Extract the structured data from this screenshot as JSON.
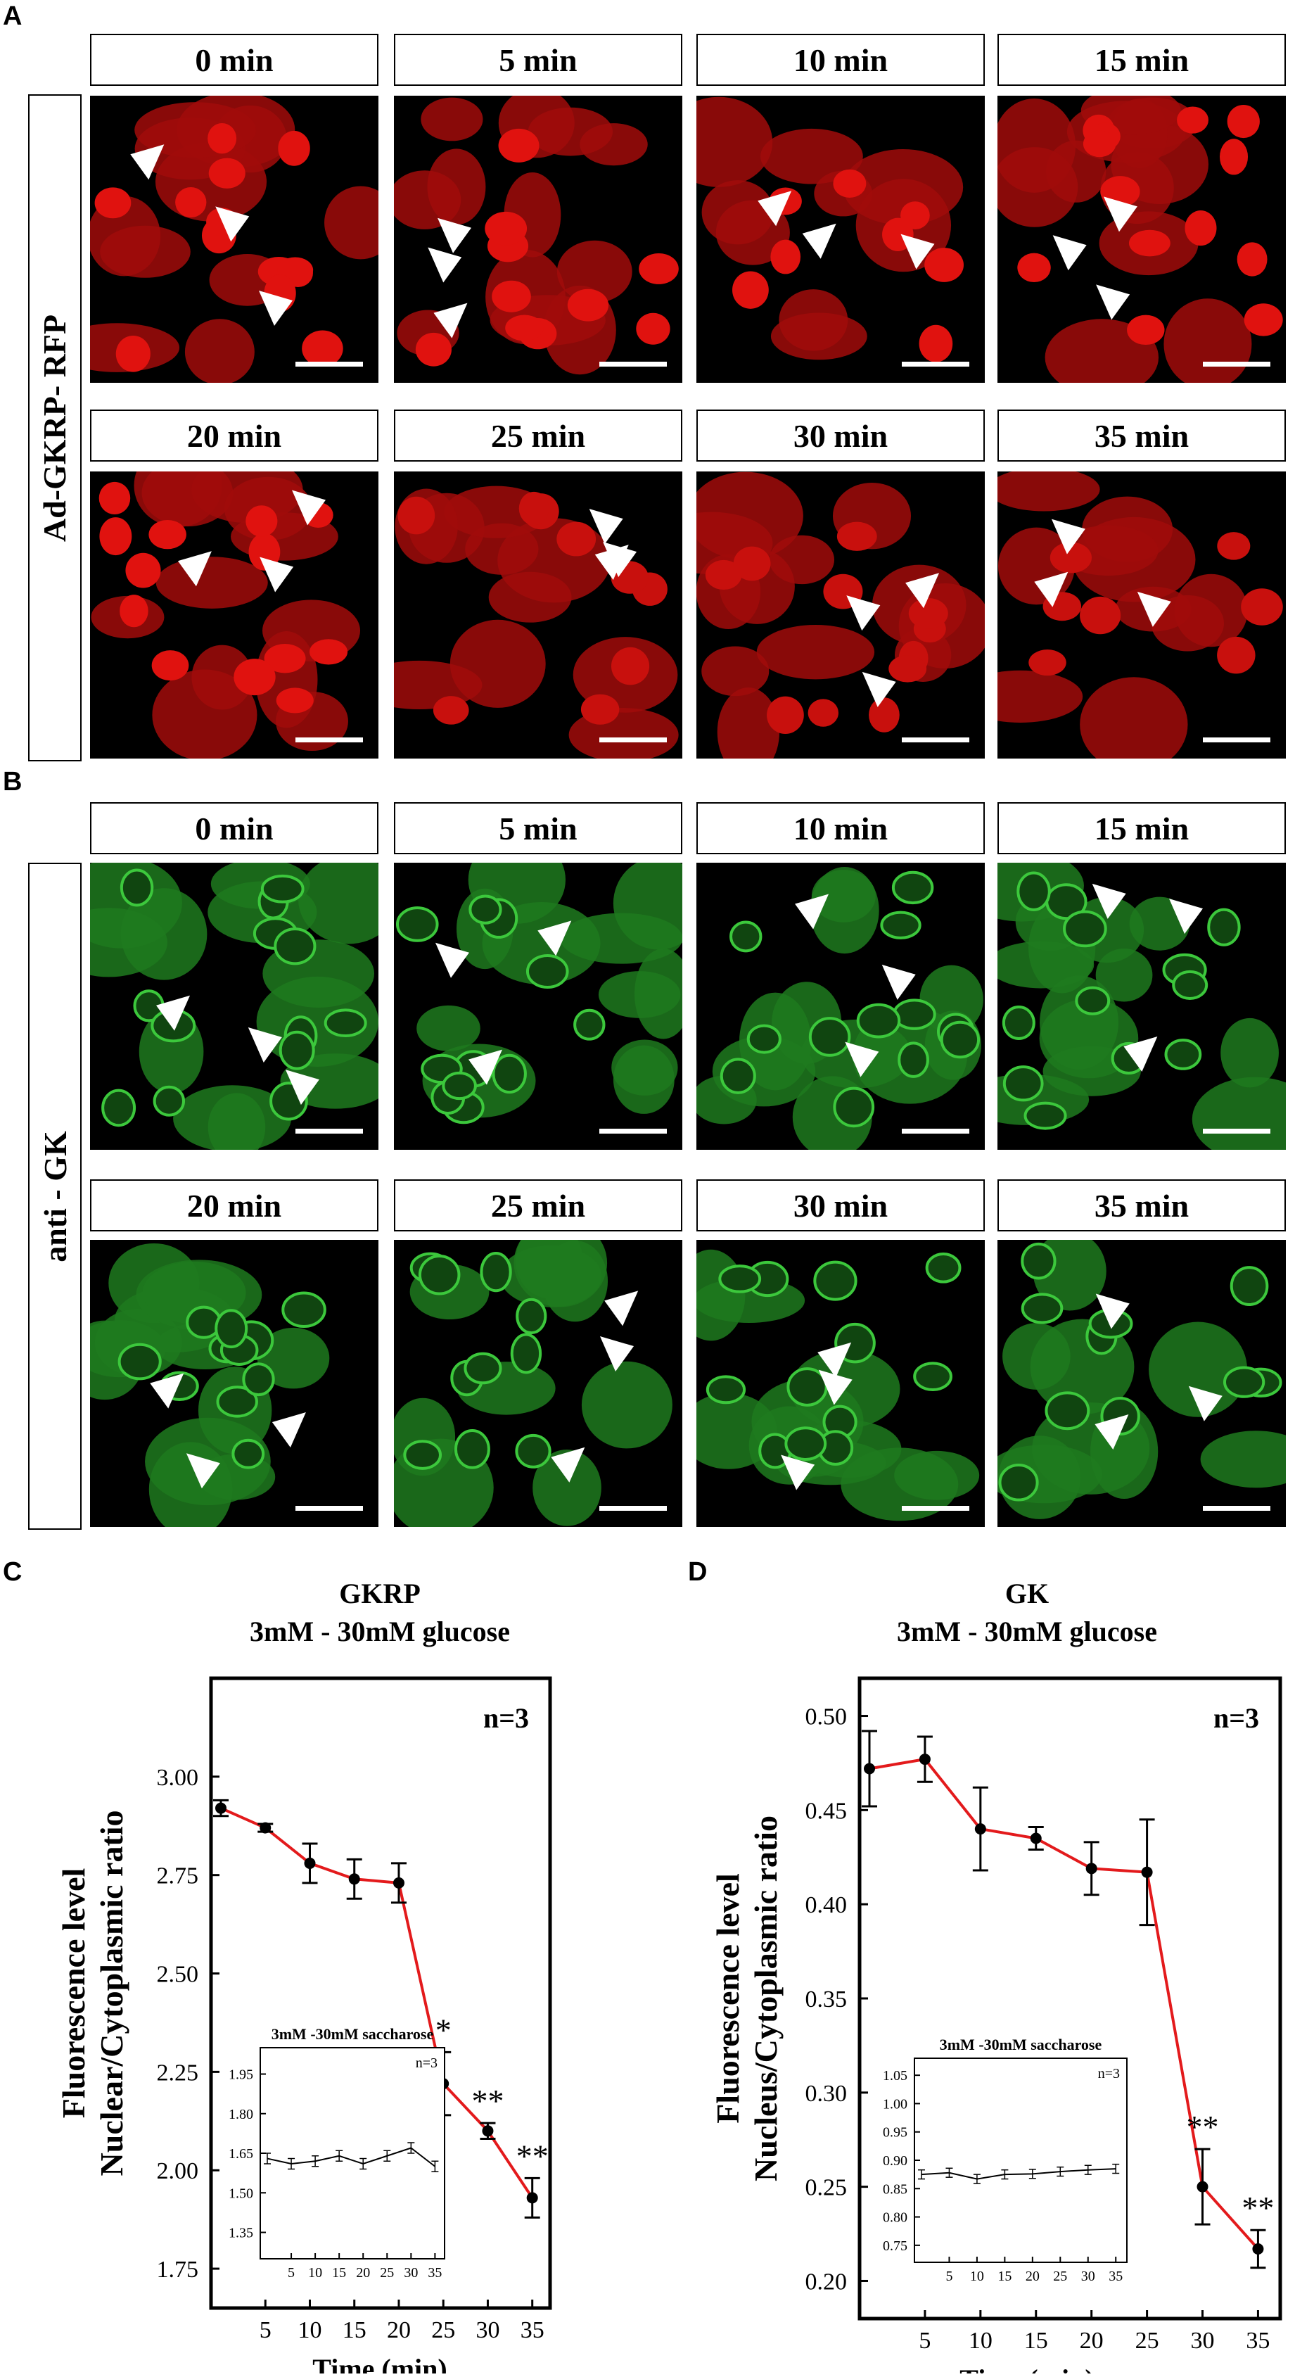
{
  "panels": {
    "a_label": "A",
    "b_label": "B",
    "c_label": "C",
    "d_label": "D"
  },
  "rows": {
    "gkrp_label": "Ad-GKRP- RFP",
    "gk_label": "anti - GK"
  },
  "time_labels": [
    "0 min",
    "5 min",
    "10 min",
    "15 min",
    "20 min",
    "25 min",
    "30 min",
    "35 min"
  ],
  "colors": {
    "red_channel": "#e0120f",
    "green_channel": "#2fae2f",
    "line_red": "#e31a1c",
    "marker": "#000000"
  },
  "chart_data": [
    {
      "type": "line",
      "title": "GKRP",
      "subtitle": "3mM - 30mM glucose",
      "xlabel": "Time (min)",
      "ylabel": "Fluorescence level\nNuclear/Cytoplasmic ratio",
      "n_label": "n=3",
      "x": [
        0,
        5,
        10,
        15,
        20,
        25,
        30,
        35
      ],
      "xticks": [
        "5",
        "10",
        "15",
        "20",
        "25",
        "30",
        "35"
      ],
      "yticks": [
        "1.75",
        "2.00",
        "2.25",
        "2.50",
        "2.75",
        "3.00"
      ],
      "ylim": [
        1.65,
        3.25
      ],
      "series": [
        {
          "values": [
            2.92,
            2.87,
            2.78,
            2.74,
            2.73,
            2.22,
            2.1,
            1.93
          ],
          "errors": [
            0.02,
            0.01,
            0.05,
            0.05,
            0.05,
            0.08,
            0.02,
            0.05
          ]
        }
      ],
      "significance": [
        {
          "x": 25,
          "label": "*"
        },
        {
          "x": 30,
          "label": "**"
        },
        {
          "x": 35,
          "label": "**"
        }
      ],
      "inset": {
        "title": "3mM -30mM saccharose",
        "n_label": "n=3",
        "x": [
          0,
          5,
          10,
          15,
          20,
          25,
          30,
          35
        ],
        "xticks": [
          "5",
          "10",
          "15",
          "20",
          "25",
          "30",
          "35"
        ],
        "yticks": [
          "1.35",
          "1.50",
          "1.65",
          "1.80",
          "1.95"
        ],
        "ylim": [
          1.25,
          2.05
        ],
        "values": [
          1.63,
          1.61,
          1.62,
          1.64,
          1.61,
          1.64,
          1.67,
          1.6
        ],
        "errors": [
          0.02,
          0.02,
          0.02,
          0.02,
          0.02,
          0.02,
          0.02,
          0.02
        ]
      }
    },
    {
      "type": "line",
      "title": "GK",
      "subtitle": "3mM - 30mM glucose",
      "xlabel": "Time (min)",
      "ylabel": "Fluorescence level\nNucleus/Cytoplasmic ratio",
      "n_label": "n=3",
      "x": [
        0,
        5,
        10,
        15,
        20,
        25,
        30,
        35
      ],
      "xticks": [
        "5",
        "10",
        "15",
        "20",
        "25",
        "30",
        "35"
      ],
      "yticks": [
        "0.20",
        "0.25",
        "0.30",
        "0.35",
        "0.40",
        "0.45",
        "0.50"
      ],
      "ylim": [
        0.18,
        0.52
      ],
      "series": [
        {
          "values": [
            0.472,
            0.477,
            0.44,
            0.435,
            0.419,
            0.417,
            0.25,
            0.217
          ],
          "errors": [
            0.02,
            0.012,
            0.022,
            0.006,
            0.014,
            0.028,
            0.02,
            0.01
          ]
        }
      ],
      "significance": [
        {
          "x": 30,
          "label": "**"
        },
        {
          "x": 35,
          "label": "**"
        }
      ],
      "inset": {
        "title": "3mM -30mM saccharose",
        "n_label": "n=3",
        "x": [
          0,
          5,
          10,
          15,
          20,
          25,
          30,
          35
        ],
        "xticks": [
          "5",
          "10",
          "15",
          "20",
          "25",
          "30",
          "35"
        ],
        "yticks": [
          "0.75",
          "0.80",
          "0.85",
          "0.90",
          "0.95",
          "1.00",
          "1.05"
        ],
        "ylim": [
          0.72,
          1.08
        ],
        "values": [
          0.875,
          0.878,
          0.867,
          0.875,
          0.876,
          0.88,
          0.883,
          0.885
        ],
        "errors": [
          0.008,
          0.008,
          0.008,
          0.008,
          0.008,
          0.008,
          0.008,
          0.008
        ]
      }
    }
  ]
}
